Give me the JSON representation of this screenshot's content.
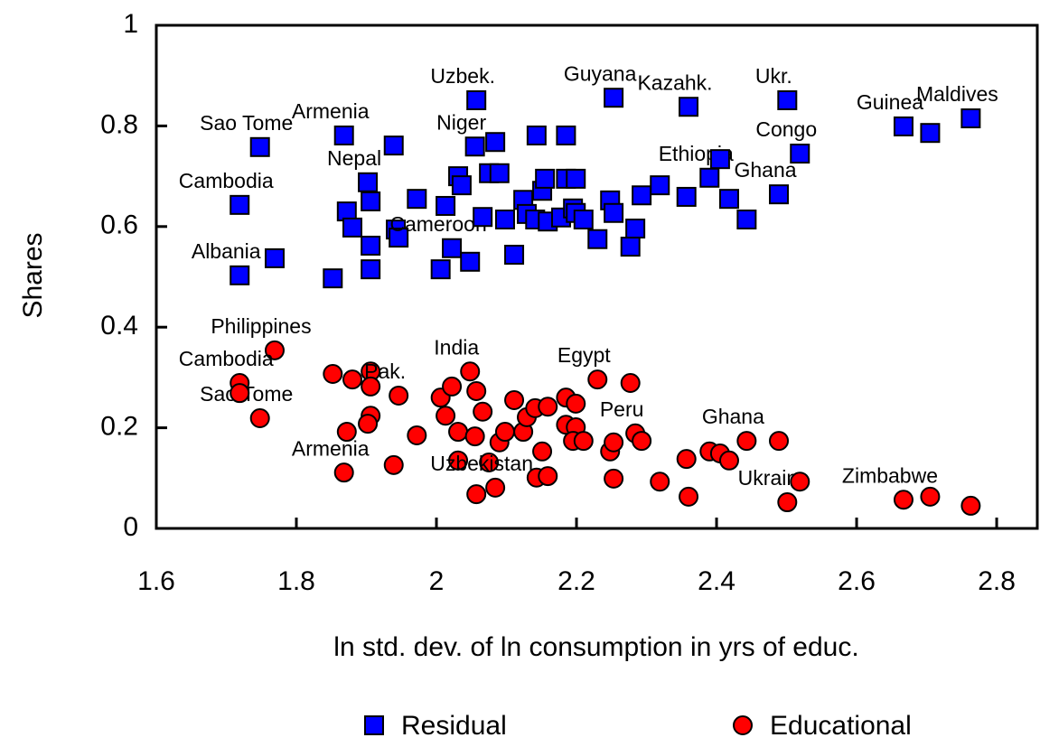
{
  "chart_data": {
    "type": "scatter",
    "xlabel": "ln std. dev. of ln consumption in yrs of educ.",
    "ylabel": "Shares",
    "xlim": [
      1.6,
      2.858
    ],
    "ylim": [
      0,
      1
    ],
    "xticks": [
      1.6,
      1.8,
      2,
      2.2,
      2.4,
      2.6,
      2.8
    ],
    "yticks": [
      0,
      0.2,
      0.4,
      0.6,
      0.8,
      1
    ],
    "series": [
      {
        "name": "Residual",
        "color": "#0000ff",
        "marker": "square",
        "x": [
          1.748,
          1.719,
          1.719,
          1.769,
          1.868,
          1.939,
          1.902,
          1.906,
          1.872,
          1.88,
          1.906,
          1.906,
          1.852,
          1.942,
          1.946,
          1.972,
          2.013,
          2.006,
          2.022,
          2.048,
          2.031,
          2.036,
          2.057,
          2.055,
          2.084,
          2.075,
          2.09,
          2.066,
          2.098,
          2.111,
          2.124,
          2.129,
          2.143,
          2.185,
          2.151,
          2.155,
          2.141,
          2.159,
          2.178,
          2.185,
          2.199,
          2.195,
          2.199,
          2.21,
          2.23,
          2.248,
          2.253,
          2.253,
          2.277,
          2.284,
          2.293,
          2.319,
          2.36,
          2.357,
          2.39,
          2.405,
          2.418,
          2.443,
          2.501,
          2.489,
          2.519,
          2.667,
          2.705,
          2.763
        ],
        "values": [
          0.758,
          0.643,
          0.503,
          0.537,
          0.781,
          0.761,
          0.688,
          0.65,
          0.63,
          0.598,
          0.562,
          0.515,
          0.497,
          0.594,
          0.578,
          0.655,
          0.641,
          0.515,
          0.557,
          0.53,
          0.7,
          0.682,
          0.851,
          0.759,
          0.768,
          0.706,
          0.706,
          0.619,
          0.614,
          0.544,
          0.653,
          0.625,
          0.781,
          0.781,
          0.671,
          0.695,
          0.614,
          0.61,
          0.618,
          0.695,
          0.695,
          0.636,
          0.627,
          0.614,
          0.575,
          0.652,
          0.627,
          0.856,
          0.56,
          0.596,
          0.662,
          0.682,
          0.838,
          0.659,
          0.697,
          0.734,
          0.655,
          0.614,
          0.851,
          0.664,
          0.745,
          0.799,
          0.786,
          0.815
        ],
        "point_labels": [
          "Sao Tome",
          "Cambodia",
          "Albania",
          null,
          "Armenia",
          null,
          "Nepal",
          null,
          null,
          null,
          null,
          null,
          null,
          null,
          null,
          null,
          null,
          null,
          "Cameroon",
          null,
          null,
          null,
          "Uzbek.",
          "Niger",
          null,
          null,
          null,
          null,
          null,
          null,
          null,
          null,
          null,
          null,
          null,
          null,
          null,
          null,
          null,
          null,
          null,
          null,
          null,
          null,
          null,
          null,
          null,
          "Guyana",
          null,
          null,
          null,
          null,
          "Kazahk.",
          null,
          "Ethiopia",
          null,
          null,
          null,
          "Ukr.",
          "Ghana",
          "Congo",
          "Guinea",
          null,
          "Maldives"
        ]
      },
      {
        "name": "Educational",
        "color": "#ff0000",
        "marker": "circle",
        "x": [
          1.769,
          1.719,
          1.748,
          1.852,
          1.88,
          1.906,
          1.906,
          1.906,
          1.902,
          1.872,
          1.868,
          1.939,
          1.946,
          1.972,
          2.006,
          2.013,
          2.022,
          2.031,
          2.031,
          2.048,
          2.057,
          2.055,
          2.057,
          2.066,
          2.075,
          2.084,
          2.09,
          2.098,
          2.111,
          2.124,
          2.129,
          2.141,
          2.143,
          2.151,
          2.159,
          2.159,
          2.185,
          2.185,
          2.199,
          2.199,
          2.195,
          2.21,
          2.23,
          2.248,
          2.253,
          2.253,
          2.277,
          2.284,
          2.293,
          2.319,
          2.357,
          2.36,
          2.39,
          2.405,
          2.418,
          2.443,
          2.489,
          2.501,
          2.519,
          2.667,
          2.705,
          2.763,
          1.719
        ],
        "values": [
          0.354,
          0.289,
          0.219,
          0.307,
          0.296,
          0.312,
          0.282,
          0.224,
          0.208,
          0.192,
          0.111,
          0.126,
          0.264,
          0.185,
          0.26,
          0.224,
          0.282,
          0.192,
          0.135,
          0.312,
          0.273,
          0.183,
          0.068,
          0.232,
          0.131,
          0.081,
          0.171,
          0.192,
          0.255,
          0.192,
          0.221,
          0.239,
          0.101,
          0.153,
          0.104,
          0.242,
          0.26,
          0.206,
          0.248,
          0.201,
          0.174,
          0.174,
          0.296,
          0.153,
          0.171,
          0.099,
          0.289,
          0.189,
          0.174,
          0.093,
          0.138,
          0.063,
          0.153,
          0.149,
          0.135,
          0.174,
          0.174,
          0.052,
          0.093,
          0.057,
          0.063,
          0.045,
          0.269
        ],
        "point_labels": [
          "Philippines",
          "Cambodia",
          "Sao Tome",
          null,
          null,
          null,
          null,
          null,
          null,
          null,
          "Armenia",
          null,
          "Pak.",
          null,
          null,
          null,
          null,
          null,
          null,
          "India",
          null,
          null,
          null,
          null,
          null,
          "Uzbekistan",
          null,
          null,
          null,
          null,
          null,
          null,
          null,
          null,
          null,
          null,
          null,
          null,
          null,
          null,
          null,
          null,
          "Egypt",
          null,
          null,
          null,
          null,
          "Peru",
          null,
          null,
          null,
          null,
          null,
          null,
          null,
          "Ghana",
          null,
          "Ukraine",
          null,
          "Zimbabwe",
          null,
          null,
          null
        ]
      }
    ]
  }
}
